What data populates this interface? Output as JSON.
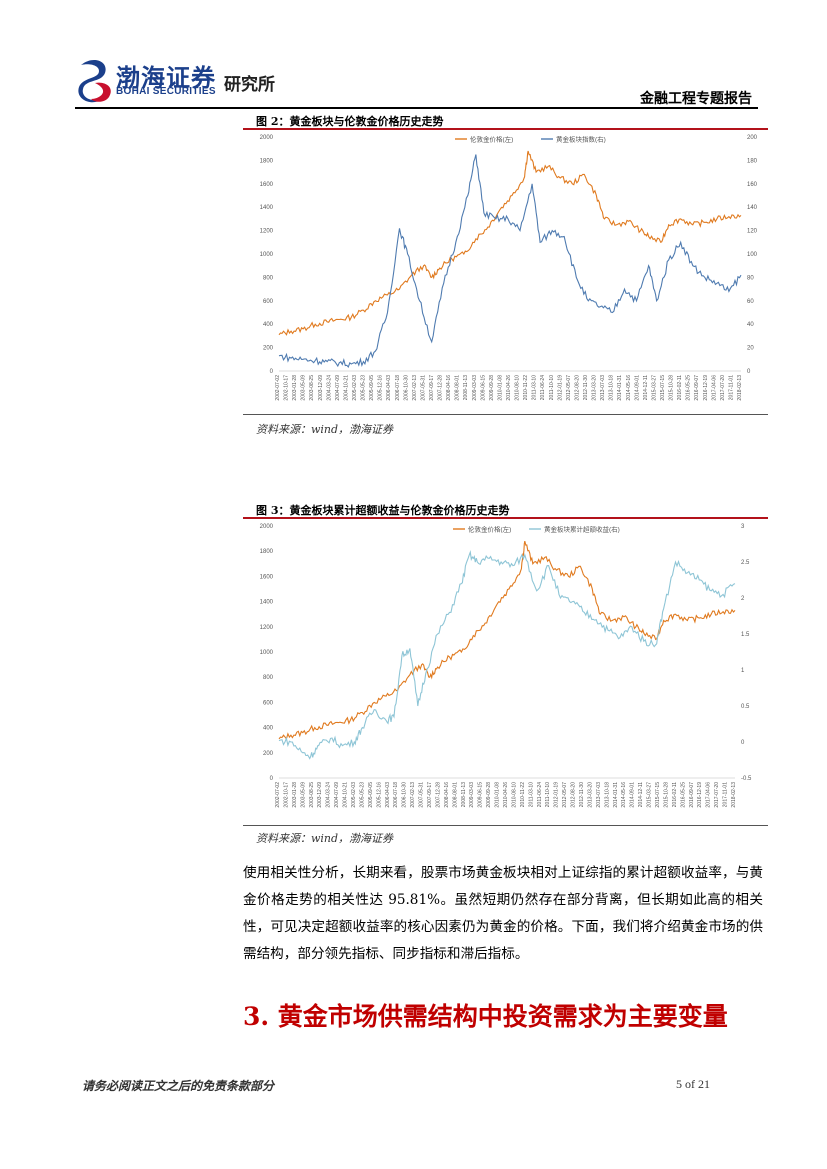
{
  "header": {
    "logo_cn": "渤海证券",
    "logo_en": "BOHAI SECURITIES",
    "institute": "研究所",
    "report_type": "金融工程专题报告"
  },
  "figure2": {
    "title": "图 2：黄金板块与伦敦金价格历史走势",
    "source": "资料来源：wind，渤海证券"
  },
  "figure3": {
    "title": "图 3：黄金板块累计超额收益与伦敦金价格历史走势",
    "source": "资料来源：wind，渤海证券"
  },
  "body": {
    "paragraph": "使用相关性分析，长期来看，股票市场黄金板块相对上证综指的累计超额收益率，与黄金价格走势的相关性达 95.81%。虽然短期仍然存在部分背离，但长期如此高的相关性，可见决定超额收益率的核心因素仍为黄金的价格。下面，我们将介绍黄金市场的供需结构，部分领先指标、同步指标和滞后指标。",
    "section_title": "3. 黄金市场供需结构中投资需求为主要变量"
  },
  "footer": {
    "disclaimer": "请务必阅读正文之后的免责条款部分",
    "page": "5 of 21"
  },
  "colors": {
    "gold": "#e07a1f",
    "blue": "#4f7bb0",
    "lightblue": "#8ec5d6",
    "red": "#b3121b",
    "navy": "#1b3f8b"
  },
  "chart_data": [
    {
      "type": "line",
      "title": "图 2：黄金板块与伦敦金价格历史走势",
      "legend_position": "top",
      "left_axis": {
        "ticks": [
          "0",
          "200",
          "400",
          "600",
          "800",
          "1000",
          "1200",
          "1400",
          "1600",
          "1800",
          "2000"
        ],
        "ylim": [
          0,
          2000
        ]
      },
      "right_axis": {
        "ticks": [
          "0",
          "20",
          "40",
          "60",
          "80",
          "100",
          "120",
          "140",
          "160",
          "180",
          "200"
        ],
        "ylim": [
          0,
          200
        ]
      },
      "x_ticks": [
        "2002-07-02",
        "2002-10-17",
        "2003-01-28",
        "2003-05-09",
        "2003-08-25",
        "2003-12-09",
        "2004-03-24",
        "2004-07-09",
        "2004-10-21",
        "2005-02-03",
        "2005-05-23",
        "2005-09-05",
        "2005-12-16",
        "2006-04-03",
        "2006-07-18",
        "2006-10-30",
        "2007-02-13",
        "2007-05-31",
        "2007-09-17",
        "2007-12-28",
        "2008-04-16",
        "2008-08-01",
        "2008-11-13",
        "2009-03-03",
        "2009-06-15",
        "2009-09-28",
        "2010-01-08",
        "2010-04-26",
        "2010-08-10",
        "2010-11-22",
        "2011-03-10",
        "2011-06-24",
        "2011-10-10",
        "2012-01-19",
        "2012-05-07",
        "2012-08-20",
        "2012-11-30",
        "2013-03-20",
        "2013-07-03",
        "2013-10-18",
        "2014-01-31",
        "2014-05-16",
        "2014-09-01",
        "2014-12-11",
        "2015-03-27",
        "2015-07-15",
        "2015-10-28",
        "2016-02-11",
        "2016-05-25",
        "2016-09-07",
        "2016-12-19",
        "2017-04-06",
        "2017-07-20",
        "2017-11-01",
        "2018-02-13"
      ],
      "series": [
        {
          "name": "伦敦金价格(左)",
          "axis": "left",
          "values": [
            [
              0,
              310
            ],
            [
              3,
              340
            ],
            [
              6,
              360
            ],
            [
              9,
              400
            ],
            [
              12,
              420
            ],
            [
              15,
              440
            ],
            [
              18,
              460
            ],
            [
              21,
              520
            ],
            [
              24,
              600
            ],
            [
              27,
              650
            ],
            [
              30,
              700
            ],
            [
              33,
              820
            ],
            [
              36,
              900
            ],
            [
              38,
              800
            ],
            [
              40,
              880
            ],
            [
              43,
              960
            ],
            [
              46,
              1000
            ],
            [
              49,
              1130
            ],
            [
              52,
              1230
            ],
            [
              55,
              1380
            ],
            [
              58,
              1500
            ],
            [
              61,
              1650
            ],
            [
              62,
              1880
            ],
            [
              64,
              1700
            ],
            [
              67,
              1750
            ],
            [
              70,
              1650
            ],
            [
              73,
              1600
            ],
            [
              76,
              1680
            ],
            [
              79,
              1500
            ],
            [
              81,
              1300
            ],
            [
              84,
              1250
            ],
            [
              87,
              1280
            ],
            [
              90,
              1200
            ],
            [
              92,
              1150
            ],
            [
              95,
              1100
            ],
            [
              97,
              1250
            ],
            [
              100,
              1300
            ],
            [
              103,
              1250
            ],
            [
              106,
              1270
            ],
            [
              109,
              1300
            ],
            [
              112,
              1320
            ],
            [
              115,
              1330
            ]
          ]
        },
        {
          "name": "黄金板块指数(右)",
          "axis": "right",
          "values": [
            [
              0,
              13
            ],
            [
              3,
              11
            ],
            [
              6,
              10
            ],
            [
              9,
              9
            ],
            [
              12,
              8
            ],
            [
              15,
              7
            ],
            [
              18,
              6
            ],
            [
              21,
              8
            ],
            [
              24,
              17
            ],
            [
              27,
              50
            ],
            [
              30,
              122
            ],
            [
              32,
              100
            ],
            [
              35,
              60
            ],
            [
              38,
              25
            ],
            [
              41,
              75
            ],
            [
              44,
              110
            ],
            [
              47,
              150
            ],
            [
              49,
              185
            ],
            [
              51,
              135
            ],
            [
              54,
              130
            ],
            [
              57,
              130
            ],
            [
              60,
              120
            ],
            [
              63,
              160
            ],
            [
              65,
              110
            ],
            [
              68,
              120
            ],
            [
              71,
              115
            ],
            [
              74,
              80
            ],
            [
              77,
              60
            ],
            [
              80,
              55
            ],
            [
              83,
              50
            ],
            [
              86,
              70
            ],
            [
              89,
              60
            ],
            [
              92,
              90
            ],
            [
              94,
              60
            ],
            [
              97,
              95
            ],
            [
              100,
              110
            ],
            [
              103,
              90
            ],
            [
              106,
              80
            ],
            [
              109,
              75
            ],
            [
              112,
              68
            ],
            [
              115,
              82
            ]
          ]
        }
      ]
    },
    {
      "type": "line",
      "title": "图 3：黄金板块累计超额收益与伦敦金价格历史走势",
      "legend_position": "top",
      "left_axis": {
        "ticks": [
          "0",
          "200",
          "400",
          "600",
          "800",
          "1000",
          "1200",
          "1400",
          "1600",
          "1800",
          "2000"
        ],
        "ylim": [
          0,
          2000
        ]
      },
      "right_axis": {
        "ticks": [
          "-0.5",
          "0",
          "0.5",
          "1",
          "1.5",
          "2",
          "2.5",
          "3"
        ],
        "ylim": [
          -0.5,
          3
        ]
      },
      "x_ticks": [
        "2002-07-02",
        "2002-10-17",
        "2003-01-28",
        "2003-05-09",
        "2003-08-25",
        "2003-12-09",
        "2004-03-24",
        "2004-07-09",
        "2004-10-21",
        "2005-02-03",
        "2005-05-23",
        "2005-09-05",
        "2005-12-16",
        "2006-04-03",
        "2006-07-18",
        "2006-10-30",
        "2007-02-13",
        "2007-05-31",
        "2007-09-17",
        "2007-12-28",
        "2008-04-16",
        "2008-08-01",
        "2008-11-13",
        "2009-03-03",
        "2009-06-15",
        "2009-09-28",
        "2010-01-08",
        "2010-04-26",
        "2010-08-10",
        "2010-11-22",
        "2011-03-10",
        "2011-06-24",
        "2011-10-10",
        "2012-01-19",
        "2012-05-07",
        "2012-08-20",
        "2012-11-30",
        "2013-03-20",
        "2013-07-03",
        "2013-10-18",
        "2014-01-31",
        "2014-05-16",
        "2014-09-01",
        "2014-12-11",
        "2015-03-27",
        "2015-07-15",
        "2015-10-28",
        "2016-02-11",
        "2016-05-25",
        "2016-09-07",
        "2016-12-19",
        "2017-04-06",
        "2017-07-20",
        "2017-11-01",
        "2018-02-13"
      ],
      "series": [
        {
          "name": "伦敦金价格(左)",
          "axis": "left",
          "values": [
            [
              0,
              310
            ],
            [
              3,
              340
            ],
            [
              6,
              360
            ],
            [
              9,
              400
            ],
            [
              12,
              420
            ],
            [
              15,
              440
            ],
            [
              18,
              460
            ],
            [
              21,
              520
            ],
            [
              24,
              600
            ],
            [
              27,
              650
            ],
            [
              30,
              700
            ],
            [
              33,
              820
            ],
            [
              36,
              900
            ],
            [
              38,
              800
            ],
            [
              40,
              880
            ],
            [
              43,
              960
            ],
            [
              46,
              1000
            ],
            [
              49,
              1130
            ],
            [
              52,
              1230
            ],
            [
              55,
              1380
            ],
            [
              58,
              1500
            ],
            [
              61,
              1650
            ],
            [
              62,
              1880
            ],
            [
              64,
              1700
            ],
            [
              67,
              1750
            ],
            [
              70,
              1650
            ],
            [
              73,
              1600
            ],
            [
              76,
              1680
            ],
            [
              79,
              1500
            ],
            [
              81,
              1300
            ],
            [
              84,
              1250
            ],
            [
              87,
              1280
            ],
            [
              90,
              1200
            ],
            [
              92,
              1150
            ],
            [
              95,
              1100
            ],
            [
              97,
              1250
            ],
            [
              100,
              1300
            ],
            [
              103,
              1250
            ],
            [
              106,
              1270
            ],
            [
              109,
              1300
            ],
            [
              112,
              1320
            ],
            [
              115,
              1330
            ]
          ]
        },
        {
          "name": "黄金板块累计超额收益(右)",
          "axis": "right",
          "values": [
            [
              0,
              0.02
            ],
            [
              3,
              0.0
            ],
            [
              6,
              -0.15
            ],
            [
              8,
              -0.2
            ],
            [
              10,
              -0.05
            ],
            [
              13,
              0.05
            ],
            [
              16,
              -0.05
            ],
            [
              19,
              0.0
            ],
            [
              21,
              0.2
            ],
            [
              24,
              0.45
            ],
            [
              27,
              0.3
            ],
            [
              29,
              0.35
            ],
            [
              31,
              1.2
            ],
            [
              33,
              1.3
            ],
            [
              35,
              0.5
            ],
            [
              37,
              0.95
            ],
            [
              40,
              1.5
            ],
            [
              43,
              1.8
            ],
            [
              46,
              2.2
            ],
            [
              48,
              2.6
            ],
            [
              50,
              2.5
            ],
            [
              53,
              2.55
            ],
            [
              56,
              2.5
            ],
            [
              59,
              2.45
            ],
            [
              62,
              2.6
            ],
            [
              65,
              2.1
            ],
            [
              68,
              2.45
            ],
            [
              71,
              2.0
            ],
            [
              74,
              1.95
            ],
            [
              77,
              1.8
            ],
            [
              80,
              1.7
            ],
            [
              83,
              1.55
            ],
            [
              86,
              1.45
            ],
            [
              89,
              1.6
            ],
            [
              92,
              1.4
            ],
            [
              95,
              1.35
            ],
            [
              97,
              1.85
            ],
            [
              100,
              2.5
            ],
            [
              103,
              2.35
            ],
            [
              106,
              2.25
            ],
            [
              109,
              2.1
            ],
            [
              112,
              2.05
            ],
            [
              115,
              2.2
            ]
          ]
        }
      ]
    }
  ]
}
